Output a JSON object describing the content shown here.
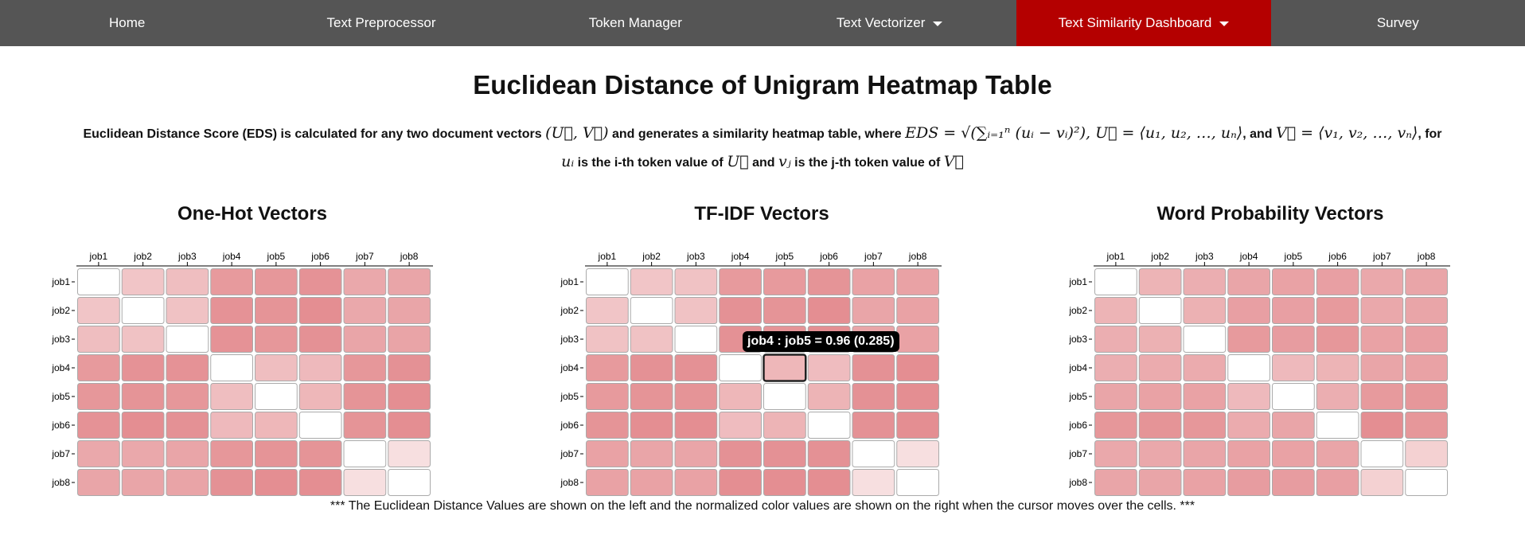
{
  "nav": {
    "items": [
      {
        "label": "Home",
        "active": false,
        "dropdown": false
      },
      {
        "label": "Text Preprocessor",
        "active": false,
        "dropdown": false
      },
      {
        "label": "Token Manager",
        "active": false,
        "dropdown": false
      },
      {
        "label": "Text Vectorizer",
        "active": false,
        "dropdown": true
      },
      {
        "label": "Text Similarity Dashboard",
        "active": true,
        "dropdown": true
      },
      {
        "label": "Survey",
        "active": false,
        "dropdown": false
      }
    ]
  },
  "page": {
    "title": "Euclidean Distance of Unigram Heatmap Table",
    "desc": {
      "t1": "Euclidean Distance Score (EDS) is calculated for any two document vectors ",
      "m1": "(U⃗, V⃗)",
      "t2": " and generates a similarity heatmap table, where ",
      "m2": "EDS = √(∑ᵢ₌₁ⁿ (uᵢ − vᵢ)²), U⃗ = ⟨u₁, u₂, …, uₙ⟩",
      "t3": ", and ",
      "m3": "V⃗ = ⟨v₁, v₂, …, vₙ⟩",
      "t4": ", for ",
      "m4": "uᵢ",
      "t5": " is the i-th token value of ",
      "m5": "U⃗",
      "t6": " and ",
      "m6": "vⱼ",
      "t7": " is the j-th token value of ",
      "m7": "V⃗"
    },
    "footnote": "*** The Euclidean Distance Values are shown on the left and the normalized color values are shown on the right when the cursor moves over the cells. ***"
  },
  "heatmaps": [
    {
      "title": "One-Hot Vectors",
      "labels": [
        "job1",
        "job2",
        "job3",
        "job4",
        "job5",
        "job6",
        "job7",
        "job8"
      ],
      "intensity": [
        [
          0.0,
          0.4,
          0.45,
          0.7,
          0.72,
          0.75,
          0.6,
          0.62
        ],
        [
          0.4,
          0.0,
          0.42,
          0.75,
          0.74,
          0.78,
          0.6,
          0.62
        ],
        [
          0.45,
          0.42,
          0.0,
          0.75,
          0.72,
          0.76,
          0.62,
          0.63
        ],
        [
          0.7,
          0.75,
          0.75,
          0.0,
          0.45,
          0.48,
          0.72,
          0.76
        ],
        [
          0.72,
          0.74,
          0.72,
          0.45,
          0.0,
          0.5,
          0.74,
          0.78
        ],
        [
          0.75,
          0.78,
          0.76,
          0.48,
          0.5,
          0.0,
          0.74,
          0.78
        ],
        [
          0.6,
          0.6,
          0.62,
          0.72,
          0.74,
          0.74,
          0.0,
          0.22
        ],
        [
          0.62,
          0.62,
          0.63,
          0.76,
          0.78,
          0.78,
          0.22,
          0.0
        ]
      ]
    },
    {
      "title": "TF-IDF Vectors",
      "labels": [
        "job1",
        "job2",
        "job3",
        "job4",
        "job5",
        "job6",
        "job7",
        "job8"
      ],
      "intensity": [
        [
          0.0,
          0.4,
          0.42,
          0.7,
          0.7,
          0.74,
          0.64,
          0.64
        ],
        [
          0.4,
          0.0,
          0.42,
          0.76,
          0.74,
          0.78,
          0.62,
          0.64
        ],
        [
          0.42,
          0.42,
          0.0,
          0.76,
          0.74,
          0.78,
          0.62,
          0.64
        ],
        [
          0.7,
          0.76,
          0.76,
          0.0,
          0.5,
          0.46,
          0.76,
          0.78
        ],
        [
          0.7,
          0.74,
          0.74,
          0.5,
          0.0,
          0.52,
          0.76,
          0.78
        ],
        [
          0.74,
          0.78,
          0.78,
          0.46,
          0.52,
          0.0,
          0.76,
          0.78
        ],
        [
          0.64,
          0.62,
          0.62,
          0.76,
          0.76,
          0.76,
          0.0,
          0.22
        ],
        [
          0.64,
          0.64,
          0.64,
          0.78,
          0.78,
          0.78,
          0.22,
          0.0
        ]
      ],
      "highlight": {
        "row": 3,
        "col": 4
      }
    },
    {
      "title": "Word Probability Vectors",
      "labels": [
        "job1",
        "job2",
        "job3",
        "job4",
        "job5",
        "job6",
        "job7",
        "job8"
      ],
      "intensity": [
        [
          0.0,
          0.52,
          0.56,
          0.62,
          0.64,
          0.66,
          0.6,
          0.62
        ],
        [
          0.52,
          0.0,
          0.54,
          0.66,
          0.66,
          0.7,
          0.6,
          0.62
        ],
        [
          0.56,
          0.54,
          0.0,
          0.7,
          0.68,
          0.72,
          0.64,
          0.66
        ],
        [
          0.56,
          0.58,
          0.58,
          0.0,
          0.48,
          0.52,
          0.62,
          0.64
        ],
        [
          0.62,
          0.64,
          0.64,
          0.48,
          0.0,
          0.56,
          0.7,
          0.72
        ],
        [
          0.72,
          0.74,
          0.72,
          0.58,
          0.62,
          0.0,
          0.78,
          0.72
        ],
        [
          0.6,
          0.6,
          0.62,
          0.64,
          0.64,
          0.62,
          0.0,
          0.32
        ],
        [
          0.62,
          0.62,
          0.64,
          0.68,
          0.68,
          0.66,
          0.32,
          0.0
        ]
      ]
    }
  ],
  "tooltip": {
    "text": "job4 : job5 = 0.96 (0.285)"
  },
  "colors": {
    "nav_bg": "#555555",
    "nav_active": "#b40000",
    "heat_base": "#dc6e73"
  }
}
